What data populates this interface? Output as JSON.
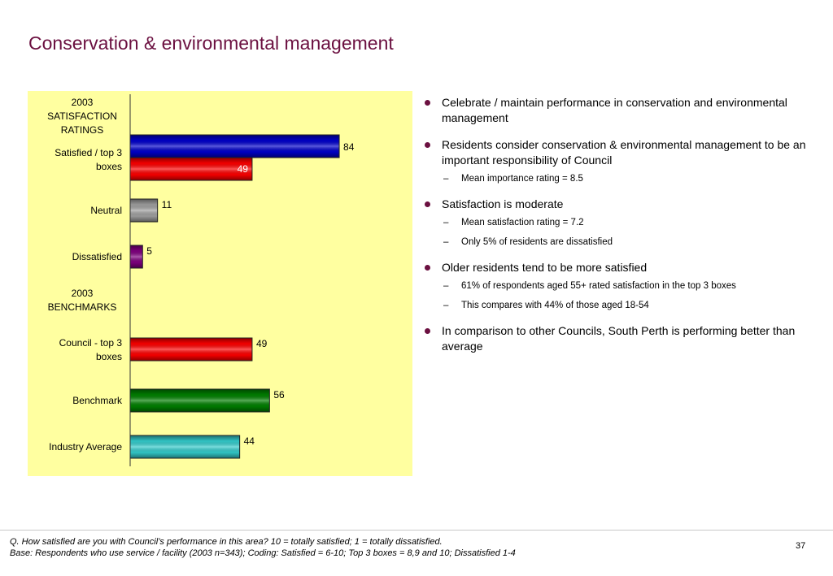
{
  "title": "Conservation & environmental management",
  "chart_data": {
    "type": "bar",
    "orientation": "horizontal",
    "xlim": [
      0,
      100
    ],
    "groups": [
      {
        "heading": "2003 SATISFACTION RATINGS",
        "heading_lines": [
          "2003",
          "SATISFACTION",
          "RATINGS"
        ]
      },
      {
        "heading": "2003 BENCHMARKS",
        "heading_lines": [
          "2003",
          "BENCHMARKS"
        ]
      }
    ],
    "categories": [
      {
        "label": "Satisfied / top 3 boxes",
        "label_lines": [
          "Satisfied / top 3",
          "boxes"
        ],
        "group": 0,
        "bars": [
          {
            "value": 84,
            "label": "84",
            "color": "#0000cc",
            "label_color": "#000000"
          },
          {
            "value": 49,
            "label": "49",
            "color": "#ff0000",
            "label_color": "#ffffff"
          }
        ]
      },
      {
        "label": "Neutral",
        "label_lines": [
          "Neutral"
        ],
        "group": 0,
        "bars": [
          {
            "value": 11,
            "label": "11",
            "color": "#a0a0a0",
            "label_color": "#000000"
          }
        ]
      },
      {
        "label": "Dissatisfied",
        "label_lines": [
          "Dissatisfied"
        ],
        "group": 0,
        "bars": [
          {
            "value": 5,
            "label": "5",
            "color": "#800080",
            "label_color": "#000000"
          }
        ]
      },
      {
        "label": "Council - top 3 boxes",
        "label_lines": [
          "Council - top 3",
          "boxes"
        ],
        "group": 1,
        "bars": [
          {
            "value": 49,
            "label": "49",
            "color": "#ff0000",
            "label_color": "#000000"
          }
        ]
      },
      {
        "label": "Benchmark",
        "label_lines": [
          "Benchmark"
        ],
        "group": 1,
        "bars": [
          {
            "value": 56,
            "label": "56",
            "color": "#008000",
            "label_color": "#000000"
          }
        ]
      },
      {
        "label": "Industry Average",
        "label_lines": [
          "Industry Average"
        ],
        "group": 1,
        "bars": [
          {
            "value": 44,
            "label": "44",
            "color": "#33cccc",
            "label_color": "#000000"
          }
        ]
      }
    ]
  },
  "bullets": [
    {
      "text": "Celebrate / maintain performance in conservation and environmental management",
      "subs": []
    },
    {
      "text": "Residents consider conservation & environmental management to be an important responsibility of Council",
      "subs": [
        "Mean importance rating = 8.5"
      ]
    },
    {
      "text": "Satisfaction is moderate",
      "subs": [
        "Mean satisfaction rating = 7.2",
        "Only 5% of residents are dissatisfied"
      ]
    },
    {
      "text": "Older residents tend to be more satisfied",
      "subs": [
        "61% of respondents aged 55+ rated satisfaction in the top 3 boxes",
        "This compares with 44% of those aged 18-54"
      ]
    },
    {
      "text": "In comparison to other Councils, South Perth is performing better than average",
      "subs": []
    }
  ],
  "sub_marker": "–",
  "footnote": {
    "line1": "Q. How satisfied are you with Council’s performance in this area?  10 = totally satisfied; 1 = totally dissatisfied.",
    "line2": "Base: Respondents who use service / facility (2003 n=343);  Coding: Satisfied = 6-10; Top 3 boxes = 8,9 and 10; Dissatisfied 1-4"
  },
  "page_number": "37",
  "colors": {
    "title": "#6b1040",
    "panel": "#ffffa0",
    "bullet": "#6b1040"
  }
}
